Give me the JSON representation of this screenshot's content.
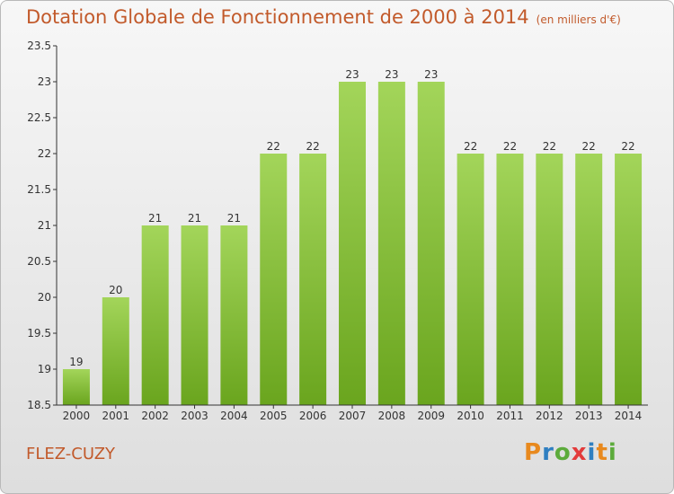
{
  "header": {
    "title": "Dotation Globale de Fonctionnement de 2000 à 2014",
    "unit": "(en milliers d'€)"
  },
  "footer": {
    "town": "FLEZ-CUZY",
    "logo": "Proxiti",
    "logo_colors": [
      "#e8891e",
      "#2f7fc1",
      "#5cab3b",
      "#e33b3b",
      "#2f7fc1",
      "#e8891e",
      "#5cab3b"
    ]
  },
  "chart_data": {
    "type": "bar",
    "title": "Dotation Globale de Fonctionnement de 2000 à 2014",
    "categories": [
      "2000",
      "2001",
      "2002",
      "2003",
      "2004",
      "2005",
      "2006",
      "2007",
      "2008",
      "2009",
      "2010",
      "2011",
      "2012",
      "2013",
      "2014"
    ],
    "values": [
      19,
      20,
      21,
      21,
      21,
      22,
      22,
      23,
      23,
      23,
      22,
      22,
      22,
      22,
      22
    ],
    "data_labels": [
      "19",
      "20",
      "21",
      "21",
      "21",
      "22",
      "22",
      "23",
      "23",
      "23",
      "22",
      "22",
      "22",
      "22",
      "22"
    ],
    "ylim": [
      18.5,
      23.5
    ],
    "yticks": [
      "18.5",
      "19",
      "19.5",
      "20",
      "20.5",
      "21",
      "21.5",
      "22",
      "22.5",
      "23",
      "23.5"
    ],
    "grid": false,
    "colors": {
      "bar_light": "#a3d55a",
      "bar_dark": "#6aa51e",
      "axis": "#333333",
      "text": "#333333"
    }
  }
}
